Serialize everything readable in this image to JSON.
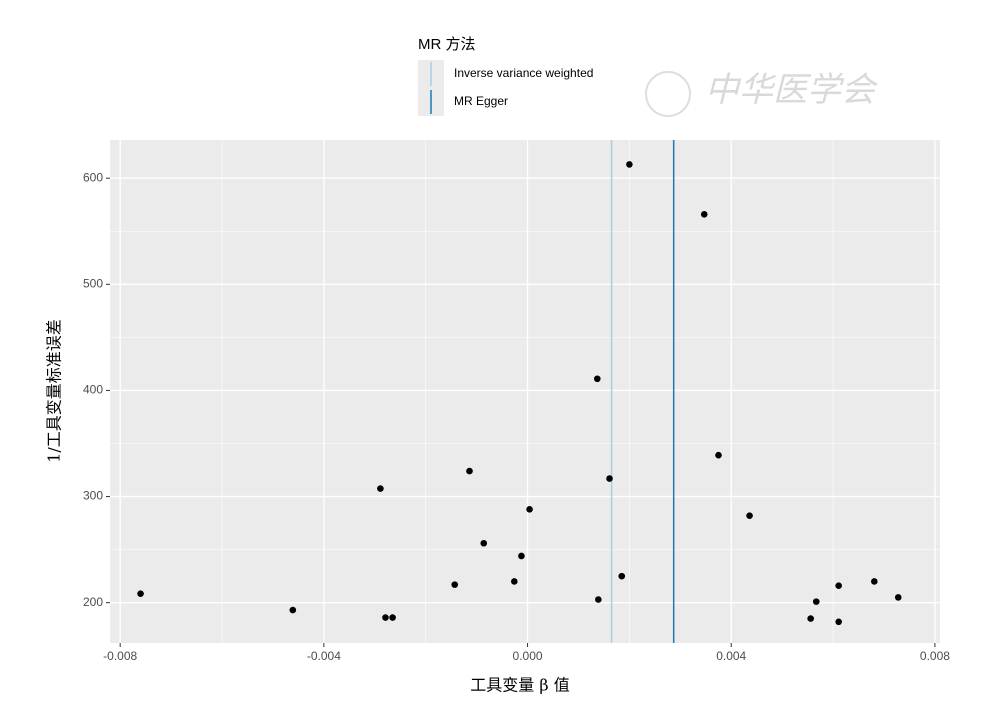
{
  "chart_data": {
    "type": "scatter",
    "xlabel": "工具变量 β 值",
    "ylabel": "1/工具变量标准误差",
    "legend_title": "MR 方法",
    "watermark": "中华医学会",
    "xlim": [
      -0.0082,
      0.0081
    ],
    "ylim": [
      162,
      636
    ],
    "xticks": [
      {
        "value": -0.008,
        "label": "-0.008"
      },
      {
        "value": -0.004,
        "label": "-0.004"
      },
      {
        "value": 0,
        "label": "0.000"
      },
      {
        "value": 0.004,
        "label": "0.004"
      },
      {
        "value": 0.008,
        "label": "0.008"
      }
    ],
    "xminor": [
      -0.006,
      -0.002,
      0.002,
      0.006
    ],
    "yticks": [
      200,
      300,
      400,
      500,
      600
    ],
    "yminor": [
      250,
      350,
      450,
      550
    ],
    "grid": true,
    "point_color": "#000000",
    "x": [
      -0.0076,
      -0.00461,
      -0.00289,
      -0.00279,
      -0.00265,
      -0.00143,
      -0.00114,
      -0.00086,
      -0.00026,
      -0.00012,
      4e-05,
      0.00137,
      0.00139,
      0.00161,
      0.00185,
      0.002,
      0.00347,
      0.00375,
      0.00436,
      0.00556,
      0.00567,
      0.00611,
      0.00611,
      0.00681,
      0.00728
    ],
    "y": [
      208.5,
      193,
      307.5,
      186,
      186,
      217,
      324,
      256,
      220,
      244,
      288,
      411,
      203,
      317,
      225,
      613,
      566,
      339,
      282,
      185,
      201,
      216,
      182,
      220,
      205
    ],
    "lines": [
      {
        "name": "Inverse variance weighted",
        "color": "#a6cee3",
        "value": 0.00165
      },
      {
        "name": "MR Egger",
        "color": "#1f78b4",
        "value": 0.00287
      }
    ]
  }
}
